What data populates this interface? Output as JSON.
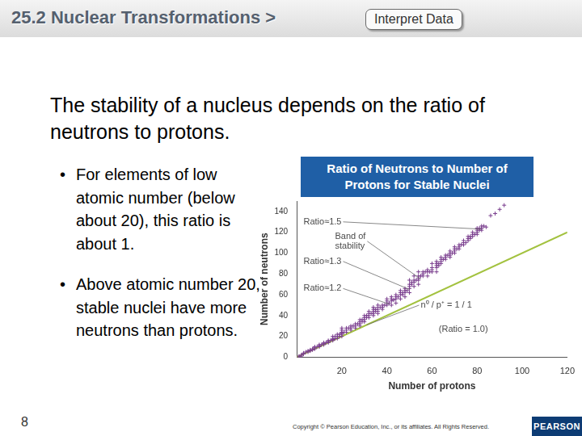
{
  "header": {
    "section": "25.2 Nuclear Transformations >",
    "tag": "Interpret Data"
  },
  "body": {
    "text": "The stability of a nucleus depends on the ratio of neutrons to protons.",
    "bullets": [
      "For elements of low atomic number (below about 20), this ratio is about 1.",
      "Above atomic number 20, stable nuclei have more neutrons than protons."
    ]
  },
  "footer": {
    "page": "8",
    "copyright": "Copyright © Pearson Education, Inc., or its affiliates. All Rights Reserved.",
    "logo": "PEARSON"
  },
  "chart_data": {
    "type": "scatter",
    "title": "Ratio of Neutrons to Number of Protons for Stable Nuclei",
    "x_label": "Number of protons",
    "y_label": "Number of neutrons",
    "xlim": [
      0,
      120
    ],
    "xticks": [
      20,
      40,
      60,
      80,
      100,
      120
    ],
    "ylim": [
      0,
      150
    ],
    "yticks": [
      0,
      20,
      40,
      60,
      80,
      100,
      120,
      140
    ],
    "grid": false,
    "series": [
      {
        "type": "scatter",
        "color": "#7a3e8e",
        "marker": "cross",
        "x": [
          1,
          1,
          2,
          2,
          3,
          3,
          4,
          5,
          5,
          6,
          6,
          7,
          7,
          8,
          8,
          8,
          9,
          10,
          10,
          10,
          11,
          12,
          12,
          12,
          13,
          14,
          14,
          14,
          15,
          16,
          16,
          16,
          16,
          17,
          17,
          18,
          18,
          18,
          19,
          19,
          20,
          20,
          20,
          20,
          20,
          20,
          21,
          22,
          22,
          22,
          23,
          24,
          24,
          24,
          25,
          26,
          26,
          26,
          27,
          28,
          28,
          28,
          28,
          29,
          29,
          30,
          30,
          30,
          30,
          31,
          31,
          32,
          32,
          32,
          32,
          33,
          34,
          34,
          34,
          34,
          34,
          35,
          35,
          36,
          36,
          36,
          36,
          36,
          37,
          38,
          38,
          38,
          39,
          40,
          40,
          40,
          40,
          41,
          42,
          42,
          42,
          42,
          43,
          44,
          44,
          44,
          44,
          45,
          46,
          46,
          46,
          46,
          47,
          47,
          48,
          48,
          48,
          48,
          49,
          50,
          50,
          50,
          50,
          50,
          51,
          51,
          52,
          52,
          52,
          52,
          53,
          54,
          54,
          54,
          54,
          54,
          55,
          56,
          56,
          56,
          57,
          58,
          58,
          58,
          59,
          60,
          60,
          60,
          60,
          62,
          62,
          62,
          62,
          62,
          63,
          63,
          64,
          64,
          64,
          64,
          65,
          66,
          66,
          66,
          67,
          68,
          68,
          68,
          68,
          69,
          70,
          70,
          70,
          70,
          71,
          72,
          72,
          72,
          73,
          74,
          74,
          74,
          75,
          76,
          76,
          76,
          77,
          77,
          78,
          78,
          78,
          79,
          80,
          80,
          80,
          80,
          81,
          81,
          82,
          82,
          82,
          83,
          84,
          86,
          88,
          90,
          92
        ],
        "values": [
          0,
          1,
          1,
          2,
          3,
          4,
          5,
          5,
          6,
          6,
          7,
          7,
          8,
          8,
          9,
          10,
          10,
          10,
          11,
          12,
          12,
          12,
          13,
          14,
          14,
          14,
          15,
          16,
          16,
          16,
          17,
          18,
          20,
          18,
          20,
          18,
          20,
          22,
          20,
          22,
          20,
          22,
          23,
          24,
          26,
          28,
          24,
          24,
          26,
          28,
          28,
          26,
          28,
          30,
          30,
          28,
          30,
          32,
          32,
          30,
          32,
          34,
          36,
          34,
          36,
          34,
          36,
          38,
          40,
          38,
          40,
          38,
          40,
          42,
          44,
          42,
          40,
          42,
          44,
          46,
          48,
          44,
          46,
          42,
          44,
          46,
          48,
          50,
          48,
          46,
          48,
          50,
          50,
          50,
          52,
          54,
          56,
          52,
          50,
          54,
          56,
          58,
          55,
          52,
          56,
          58,
          60,
          58,
          56,
          60,
          62,
          64,
          60,
          62,
          58,
          62,
          64,
          66,
          64,
          62,
          66,
          68,
          70,
          74,
          70,
          72,
          68,
          72,
          74,
          78,
          74,
          70,
          74,
          76,
          78,
          82,
          78,
          78,
          80,
          82,
          82,
          78,
          82,
          84,
          82,
          82,
          84,
          86,
          90,
          82,
          86,
          88,
          90,
          92,
          88,
          90,
          90,
          92,
          94,
          96,
          94,
          94,
          96,
          98,
          98,
          96,
          98,
          100,
          102,
          100,
          100,
          102,
          104,
          106,
          104,
          104,
          106,
          108,
          108,
          108,
          110,
          112,
          110,
          112,
          114,
          116,
          114,
          116,
          116,
          118,
          120,
          118,
          118,
          120,
          122,
          124,
          122,
          124,
          122,
          124,
          126,
          126,
          125,
          136,
          138,
          142,
          146
        ]
      },
      {
        "type": "line",
        "color": "#a3c23f",
        "line_style": "solid",
        "marker": "none",
        "x": [
          0,
          120
        ],
        "values": [
          0,
          120
        ]
      }
    ],
    "annotations": [
      {
        "text": [
          "Ratio≈1.5"
        ],
        "x": 3,
        "y": 130,
        "target": [
          82,
          123
        ]
      },
      {
        "text": [
          "Band of",
          "stability"
        ],
        "x": 17,
        "y": 116,
        "target": [
          55,
          75
        ]
      },
      {
        "text": [
          "Ratio≈1.3"
        ],
        "x": 3,
        "y": 92,
        "target": [
          50,
          65
        ]
      },
      {
        "text": [
          "Ratio≈1.2"
        ],
        "x": 3,
        "y": 66,
        "target": [
          41,
          51
        ]
      },
      {
        "text": [
          "n⁰ / p⁺ = 1 / 1"
        ],
        "x": 55,
        "y": 50,
        "target": [
          31,
          31
        ]
      },
      {
        "text": [
          "(Ratio = 1.0)"
        ],
        "x": 63,
        "y": 27
      }
    ]
  }
}
